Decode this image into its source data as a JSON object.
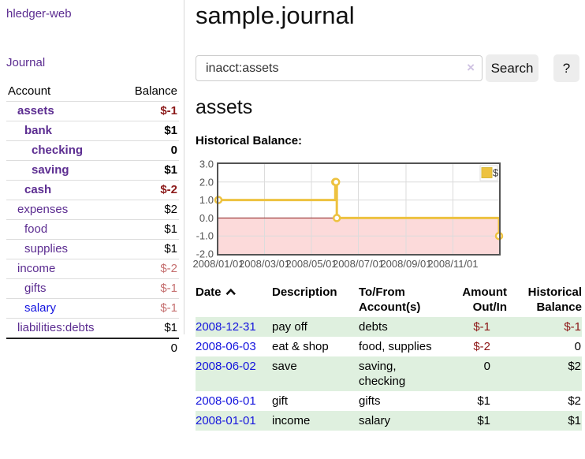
{
  "sidebar": {
    "brand": "hledger-web",
    "journal_label": "Journal",
    "accounts_table": {
      "headers": {
        "account": "Account",
        "balance": "Balance"
      },
      "rows": [
        {
          "name": "assets",
          "balance": "$-1",
          "level": 1,
          "bold": true,
          "neg": "strong",
          "unvisited": false
        },
        {
          "name": "bank",
          "balance": "$1",
          "level": 2,
          "bold": true,
          "neg": "none",
          "unvisited": false
        },
        {
          "name": "checking",
          "balance": "0",
          "level": 3,
          "bold": true,
          "neg": "none",
          "unvisited": false
        },
        {
          "name": "saving",
          "balance": "$1",
          "level": 3,
          "bold": true,
          "neg": "none",
          "unvisited": false
        },
        {
          "name": "cash",
          "balance": "$-2",
          "level": 2,
          "bold": true,
          "neg": "strong",
          "unvisited": false
        },
        {
          "name": "expenses",
          "balance": "$2",
          "level": 1,
          "bold": false,
          "neg": "none",
          "unvisited": false
        },
        {
          "name": "food",
          "balance": "$1",
          "level": 2,
          "bold": false,
          "neg": "none",
          "unvisited": false
        },
        {
          "name": "supplies",
          "balance": "$1",
          "level": 2,
          "bold": false,
          "neg": "none",
          "unvisited": false
        },
        {
          "name": "income",
          "balance": "$-2",
          "level": 1,
          "bold": false,
          "neg": "soft",
          "unvisited": false
        },
        {
          "name": "gifts",
          "balance": "$-1",
          "level": 2,
          "bold": false,
          "neg": "soft",
          "unvisited": false
        },
        {
          "name": "salary",
          "balance": "$-1",
          "level": 2,
          "bold": false,
          "neg": "soft",
          "unvisited": true
        },
        {
          "name": "liabilities:debts",
          "balance": "$1",
          "level": 1,
          "bold": false,
          "neg": "none",
          "unvisited": false
        }
      ],
      "total": "0"
    }
  },
  "header": {
    "title": "sample.journal"
  },
  "search": {
    "value": "inacct:assets",
    "clear_icon": "×",
    "search_label": "Search",
    "help_label": "?"
  },
  "account_page": {
    "heading": "assets",
    "chart_label": "Historical Balance:"
  },
  "chart_data": {
    "type": "line",
    "title": "Historical Balance:",
    "steps": true,
    "series": [
      {
        "name": "$",
        "color": "#EDC240",
        "points": [
          [
            "2008-01-01",
            1
          ],
          [
            "2008-06-01",
            2
          ],
          [
            "2008-06-02",
            2
          ],
          [
            "2008-06-03",
            0
          ],
          [
            "2008-12-31",
            -1
          ]
        ]
      }
    ],
    "xlim": [
      "2008-01-01",
      "2008-12-31"
    ],
    "ylim": [
      -2,
      3
    ],
    "x_ticks": [
      "2008/01/01",
      "2008/03/01",
      "2008/05/01",
      "2008/07/01",
      "2008/09/01",
      "2008/11/01"
    ],
    "y_ticks": [
      "3.0",
      "2.0",
      "1.0",
      "0.0",
      "-1.0",
      "-2.0"
    ],
    "grid": true,
    "legend": {
      "label": "$",
      "position": "top-right"
    },
    "negative_region_color": "#fcdada",
    "zero_line_color": "#8b1a1a"
  },
  "register": {
    "columns": [
      "Date",
      "Description",
      "To/From\nAccount(s)",
      "Amount\nOut/In",
      "Historical\nBalance"
    ],
    "sort": {
      "column": "Date",
      "direction": "ascending"
    },
    "rows": [
      {
        "date": "2008-12-31",
        "description": "pay off",
        "tofrom": "debts",
        "amount": "$-1",
        "amount_neg": true,
        "hist": "$-1",
        "hist_neg": true
      },
      {
        "date": "2008-06-03",
        "description": "eat & shop",
        "tofrom": "food, supplies",
        "amount": "$-2",
        "amount_neg": true,
        "hist": "0",
        "hist_neg": false
      },
      {
        "date": "2008-06-02",
        "description": "save",
        "tofrom": "saving,\nchecking",
        "amount": "0",
        "amount_neg": false,
        "hist": "$2",
        "hist_neg": false
      },
      {
        "date": "2008-06-01",
        "description": "gift",
        "tofrom": "gifts",
        "amount": "$1",
        "amount_neg": false,
        "hist": "$2",
        "hist_neg": false
      },
      {
        "date": "2008-01-01",
        "description": "income",
        "tofrom": "salary",
        "amount": "$1",
        "amount_neg": false,
        "hist": "$1",
        "hist_neg": false
      }
    ]
  },
  "colors": {
    "link_purple": "#5c2d91",
    "link_blue": "#1414dd",
    "negative_dark": "#8c1a1a",
    "negative_light": "#c56f6f",
    "row_highlight_green": "#dff0df",
    "series_yellow": "#EDC240"
  }
}
